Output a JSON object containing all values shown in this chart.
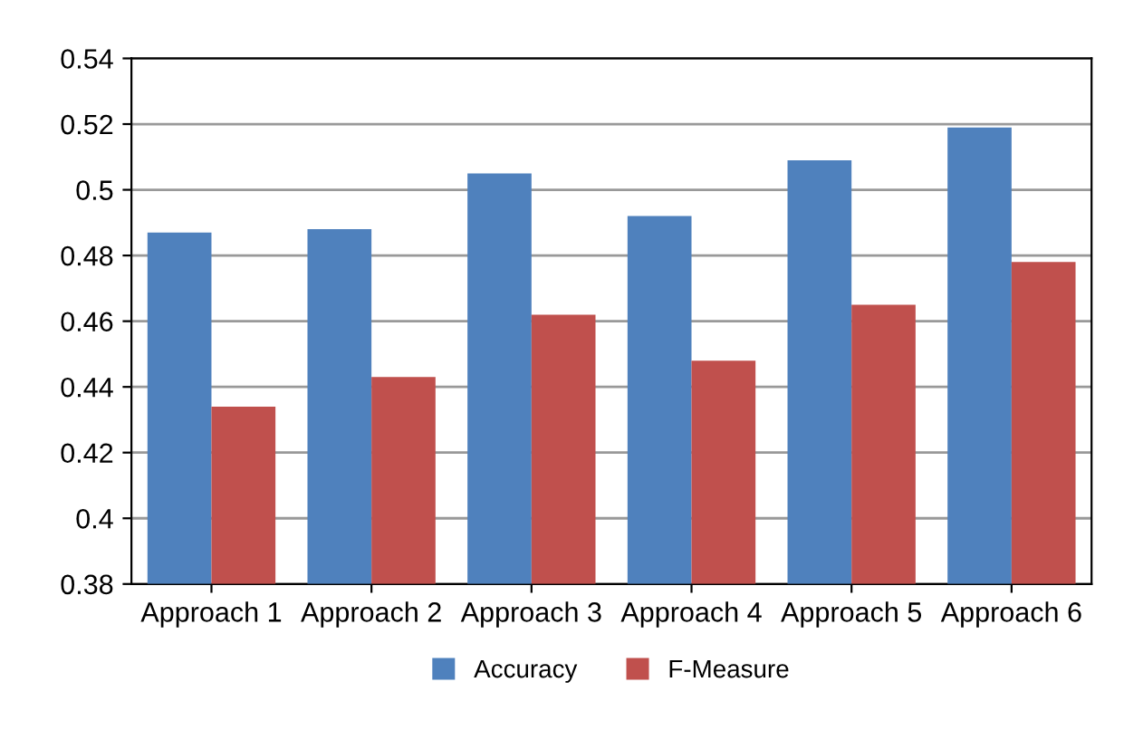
{
  "chart_data": {
    "type": "bar",
    "categories": [
      "Approach 1",
      "Approach 2",
      "Approach 3",
      "Approach 4",
      "Approach 5",
      "Approach 6"
    ],
    "series": [
      {
        "name": "Accuracy",
        "color": "#4f81bd",
        "values": [
          0.487,
          0.488,
          0.505,
          0.492,
          0.509,
          0.519
        ]
      },
      {
        "name": "F-Measure",
        "color": "#c0504d",
        "values": [
          0.434,
          0.443,
          0.462,
          0.448,
          0.465,
          0.478
        ]
      }
    ],
    "ylim": [
      0.38,
      0.54
    ],
    "yticks": [
      0.38,
      0.4,
      0.42,
      0.44,
      0.46,
      0.48,
      0.5,
      0.52,
      0.54
    ],
    "grid": "y",
    "legend": "bottom"
  }
}
